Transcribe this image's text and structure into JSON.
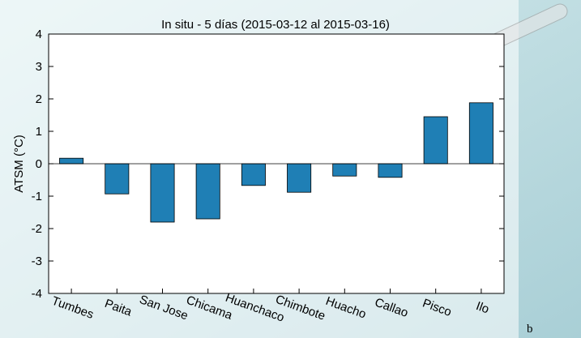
{
  "chart_data": {
    "type": "bar",
    "title": "In situ - 5 días (2015-03-12  al  2015-03-16)",
    "y_label": "ATSM  (°C)",
    "categories": [
      "Tumbes",
      "Paita",
      "San Jose",
      "Chicama",
      "Huanchaco",
      "Chimbote",
      "Huacho",
      "Callao",
      "Pisco",
      "Ilo"
    ],
    "values": [
      0.17,
      -0.93,
      -1.8,
      -1.7,
      -0.67,
      -0.88,
      -0.38,
      -0.42,
      1.45,
      1.88
    ],
    "color": "#1f7fb5",
    "ylim": [
      -4,
      4
    ],
    "yticks": [
      -4,
      -3,
      -2,
      -1,
      0,
      1,
      2,
      3,
      4
    ],
    "panel_label": "b"
  }
}
